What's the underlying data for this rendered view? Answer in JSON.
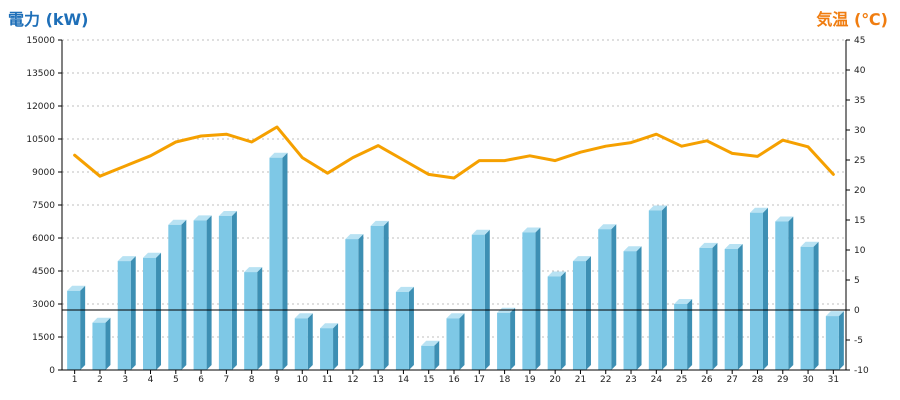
{
  "chart_data": {
    "type": "bar",
    "title": "",
    "xlabel": "",
    "ylabel": "電力 (kW)",
    "y2label": "気温 (℃)",
    "categories": [
      "1",
      "2",
      "3",
      "4",
      "5",
      "6",
      "7",
      "8",
      "9",
      "10",
      "11",
      "12",
      "13",
      "14",
      "15",
      "16",
      "17",
      "18",
      "19",
      "20",
      "21",
      "22",
      "23",
      "24",
      "25",
      "26",
      "27",
      "28",
      "29",
      "30",
      "31"
    ],
    "series": [
      {
        "type": "bar",
        "axis": "left",
        "color": "#7ec8e6",
        "values": [
          3600,
          2150,
          4950,
          5100,
          6600,
          6800,
          7000,
          4450,
          9650,
          2350,
          1900,
          5950,
          6550,
          3550,
          1100,
          2350,
          6150,
          2600,
          6250,
          4250,
          4950,
          6400,
          5400,
          7250,
          3000,
          5550,
          5500,
          7150,
          6750,
          5600,
          2450
        ]
      },
      {
        "type": "line",
        "axis": "right",
        "color": "#f5a000",
        "values": [
          25.8,
          22.3,
          24.0,
          25.7,
          28.0,
          29.0,
          29.3,
          28.0,
          30.5,
          25.4,
          22.8,
          25.4,
          27.4,
          25.0,
          22.6,
          22.0,
          24.9,
          24.9,
          25.7,
          24.9,
          26.3,
          27.3,
          27.9,
          29.3,
          27.3,
          28.2,
          26.1,
          25.6,
          28.3,
          27.2,
          22.6
        ]
      }
    ],
    "ylim": [
      0,
      15000
    ],
    "y2lim": [
      -10,
      45
    ],
    "yticks": [
      0,
      1500,
      3000,
      4500,
      6000,
      7500,
      9000,
      10500,
      12000,
      13500,
      15000
    ],
    "y2ticks": [
      -10,
      -5,
      0,
      5,
      10,
      15,
      20,
      25,
      30,
      35,
      40,
      45
    ],
    "grid": "horizontal-dashed",
    "reference_line": {
      "axis": "right",
      "value": 0,
      "color": "#000000"
    },
    "colors": {
      "left_axis_title": "#1e6fb8",
      "right_axis_title": "#f07d10",
      "bar_front": "#7ec8e6",
      "bar_side": "#3d8fb3",
      "bar_top": "#b8e2f3",
      "line": "#f5a000",
      "grid": "#bfbfbf"
    }
  }
}
